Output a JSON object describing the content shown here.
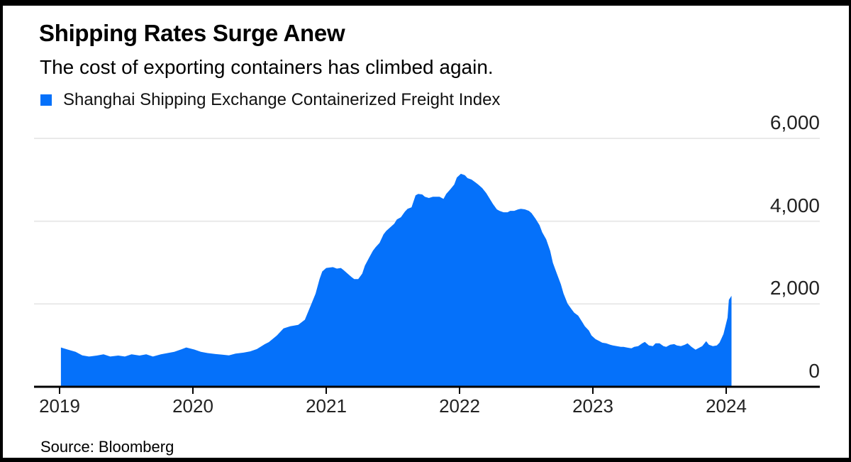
{
  "header": {
    "title": "Shipping Rates Surge Anew",
    "subtitle": "The cost of exporting containers has climbed again."
  },
  "legend": {
    "label": "Shanghai Shipping Exchange Containerized Freight Index",
    "swatch_color": "#0571fa"
  },
  "footer": {
    "source": "Source: Bloomberg"
  },
  "chart_data": {
    "type": "area",
    "title": "Shanghai Shipping Exchange Containerized Freight Index",
    "xlabel": "",
    "ylabel": "",
    "grid": "horizontal",
    "legend_position": "top-left",
    "colors": {
      "area": "#0571fa",
      "grid": "#e9e9e9",
      "axis": "#000000",
      "label_text": "#222222"
    },
    "x_axis": {
      "ticks": [
        {
          "year": 2019,
          "label": "2019"
        },
        {
          "year": 2020,
          "label": "2020"
        },
        {
          "year": 2021,
          "label": "2021"
        },
        {
          "year": 2022,
          "label": "2022"
        },
        {
          "year": 2023,
          "label": "2023"
        },
        {
          "year": 2024,
          "label": "2024"
        }
      ]
    },
    "y_axis": {
      "ylim": [
        0,
        6000
      ],
      "ticks": [
        {
          "value": 0,
          "label": "0"
        },
        {
          "value": 2000,
          "label": "2,000"
        },
        {
          "value": 4000,
          "label": "4,000"
        },
        {
          "value": 6000,
          "label": "6,000"
        }
      ]
    },
    "series": [
      {
        "name": "Shanghai Shipping Exchange Containerized Freight Index",
        "points": [
          [
            2019.01,
            950
          ],
          [
            2019.06,
            900
          ],
          [
            2019.12,
            845
          ],
          [
            2019.17,
            760
          ],
          [
            2019.22,
            730
          ],
          [
            2019.28,
            755
          ],
          [
            2019.33,
            785
          ],
          [
            2019.38,
            730
          ],
          [
            2019.44,
            755
          ],
          [
            2019.49,
            730
          ],
          [
            2019.54,
            785
          ],
          [
            2019.6,
            755
          ],
          [
            2019.65,
            785
          ],
          [
            2019.7,
            730
          ],
          [
            2019.76,
            785
          ],
          [
            2019.81,
            815
          ],
          [
            2019.86,
            845
          ],
          [
            2019.91,
            900
          ],
          [
            2019.95,
            950
          ],
          [
            2020.01,
            900
          ],
          [
            2020.06,
            845
          ],
          [
            2020.11,
            815
          ],
          [
            2020.17,
            790
          ],
          [
            2020.22,
            775
          ],
          [
            2020.27,
            760
          ],
          [
            2020.32,
            800
          ],
          [
            2020.38,
            825
          ],
          [
            2020.43,
            855
          ],
          [
            2020.48,
            910
          ],
          [
            2020.54,
            1030
          ],
          [
            2020.57,
            1080
          ],
          [
            2020.63,
            1240
          ],
          [
            2020.68,
            1410
          ],
          [
            2020.73,
            1460
          ],
          [
            2020.79,
            1495
          ],
          [
            2020.84,
            1620
          ],
          [
            2020.89,
            2010
          ],
          [
            2020.92,
            2250
          ],
          [
            2020.95,
            2600
          ],
          [
            2020.97,
            2785
          ],
          [
            2021.0,
            2870
          ],
          [
            2021.05,
            2890
          ],
          [
            2021.08,
            2855
          ],
          [
            2021.11,
            2870
          ],
          [
            2021.13,
            2820
          ],
          [
            2021.16,
            2735
          ],
          [
            2021.19,
            2650
          ],
          [
            2021.21,
            2600
          ],
          [
            2021.24,
            2600
          ],
          [
            2021.27,
            2735
          ],
          [
            2021.29,
            2925
          ],
          [
            2021.32,
            3110
          ],
          [
            2021.35,
            3285
          ],
          [
            2021.37,
            3370
          ],
          [
            2021.4,
            3475
          ],
          [
            2021.43,
            3680
          ],
          [
            2021.45,
            3765
          ],
          [
            2021.48,
            3850
          ],
          [
            2021.51,
            3940
          ],
          [
            2021.53,
            4040
          ],
          [
            2021.56,
            4095
          ],
          [
            2021.59,
            4230
          ],
          [
            2021.61,
            4300
          ],
          [
            2021.64,
            4335
          ],
          [
            2021.67,
            4625
          ],
          [
            2021.69,
            4660
          ],
          [
            2021.72,
            4645
          ],
          [
            2021.74,
            4590
          ],
          [
            2021.77,
            4560
          ],
          [
            2021.8,
            4590
          ],
          [
            2021.82,
            4590
          ],
          [
            2021.85,
            4590
          ],
          [
            2021.88,
            4540
          ],
          [
            2021.9,
            4660
          ],
          [
            2021.93,
            4765
          ],
          [
            2021.96,
            4885
          ],
          [
            2021.98,
            5055
          ],
          [
            2022.01,
            5145
          ],
          [
            2022.04,
            5110
          ],
          [
            2022.06,
            5040
          ],
          [
            2022.09,
            5005
          ],
          [
            2022.12,
            4935
          ],
          [
            2022.14,
            4885
          ],
          [
            2022.17,
            4800
          ],
          [
            2022.2,
            4680
          ],
          [
            2022.22,
            4575
          ],
          [
            2022.25,
            4420
          ],
          [
            2022.28,
            4285
          ],
          [
            2022.3,
            4250
          ],
          [
            2022.33,
            4215
          ],
          [
            2022.36,
            4215
          ],
          [
            2022.38,
            4250
          ],
          [
            2022.41,
            4250
          ],
          [
            2022.44,
            4285
          ],
          [
            2022.46,
            4300
          ],
          [
            2022.49,
            4285
          ],
          [
            2022.52,
            4250
          ],
          [
            2022.54,
            4195
          ],
          [
            2022.57,
            4060
          ],
          [
            2022.6,
            3905
          ],
          [
            2022.62,
            3730
          ],
          [
            2022.65,
            3560
          ],
          [
            2022.68,
            3285
          ],
          [
            2022.7,
            2995
          ],
          [
            2022.73,
            2735
          ],
          [
            2022.76,
            2475
          ],
          [
            2022.78,
            2255
          ],
          [
            2022.81,
            2010
          ],
          [
            2022.84,
            1875
          ],
          [
            2022.86,
            1790
          ],
          [
            2022.89,
            1720
          ],
          [
            2022.92,
            1565
          ],
          [
            2022.94,
            1460
          ],
          [
            2022.97,
            1360
          ],
          [
            2022.99,
            1240
          ],
          [
            2023.02,
            1150
          ],
          [
            2023.05,
            1100
          ],
          [
            2023.07,
            1065
          ],
          [
            2023.1,
            1050
          ],
          [
            2023.13,
            1015
          ],
          [
            2023.15,
            1000
          ],
          [
            2023.18,
            980
          ],
          [
            2023.21,
            965
          ],
          [
            2023.23,
            965
          ],
          [
            2023.26,
            945
          ],
          [
            2023.29,
            930
          ],
          [
            2023.31,
            965
          ],
          [
            2023.34,
            980
          ],
          [
            2023.37,
            1050
          ],
          [
            2023.39,
            1085
          ],
          [
            2023.42,
            1000
          ],
          [
            2023.45,
            980
          ],
          [
            2023.47,
            1050
          ],
          [
            2023.5,
            1050
          ],
          [
            2023.53,
            980
          ],
          [
            2023.55,
            965
          ],
          [
            2023.58,
            1015
          ],
          [
            2023.61,
            1030
          ],
          [
            2023.63,
            1000
          ],
          [
            2023.66,
            980
          ],
          [
            2023.69,
            1015
          ],
          [
            2023.71,
            1050
          ],
          [
            2023.74,
            965
          ],
          [
            2023.77,
            895
          ],
          [
            2023.79,
            930
          ],
          [
            2023.82,
            980
          ],
          [
            2023.85,
            1100
          ],
          [
            2023.87,
            1015
          ],
          [
            2023.9,
            980
          ],
          [
            2023.93,
            1000
          ],
          [
            2023.95,
            1065
          ],
          [
            2023.98,
            1275
          ],
          [
            2024.01,
            1670
          ],
          [
            2024.02,
            2100
          ],
          [
            2024.04,
            2200
          ]
        ]
      }
    ]
  }
}
